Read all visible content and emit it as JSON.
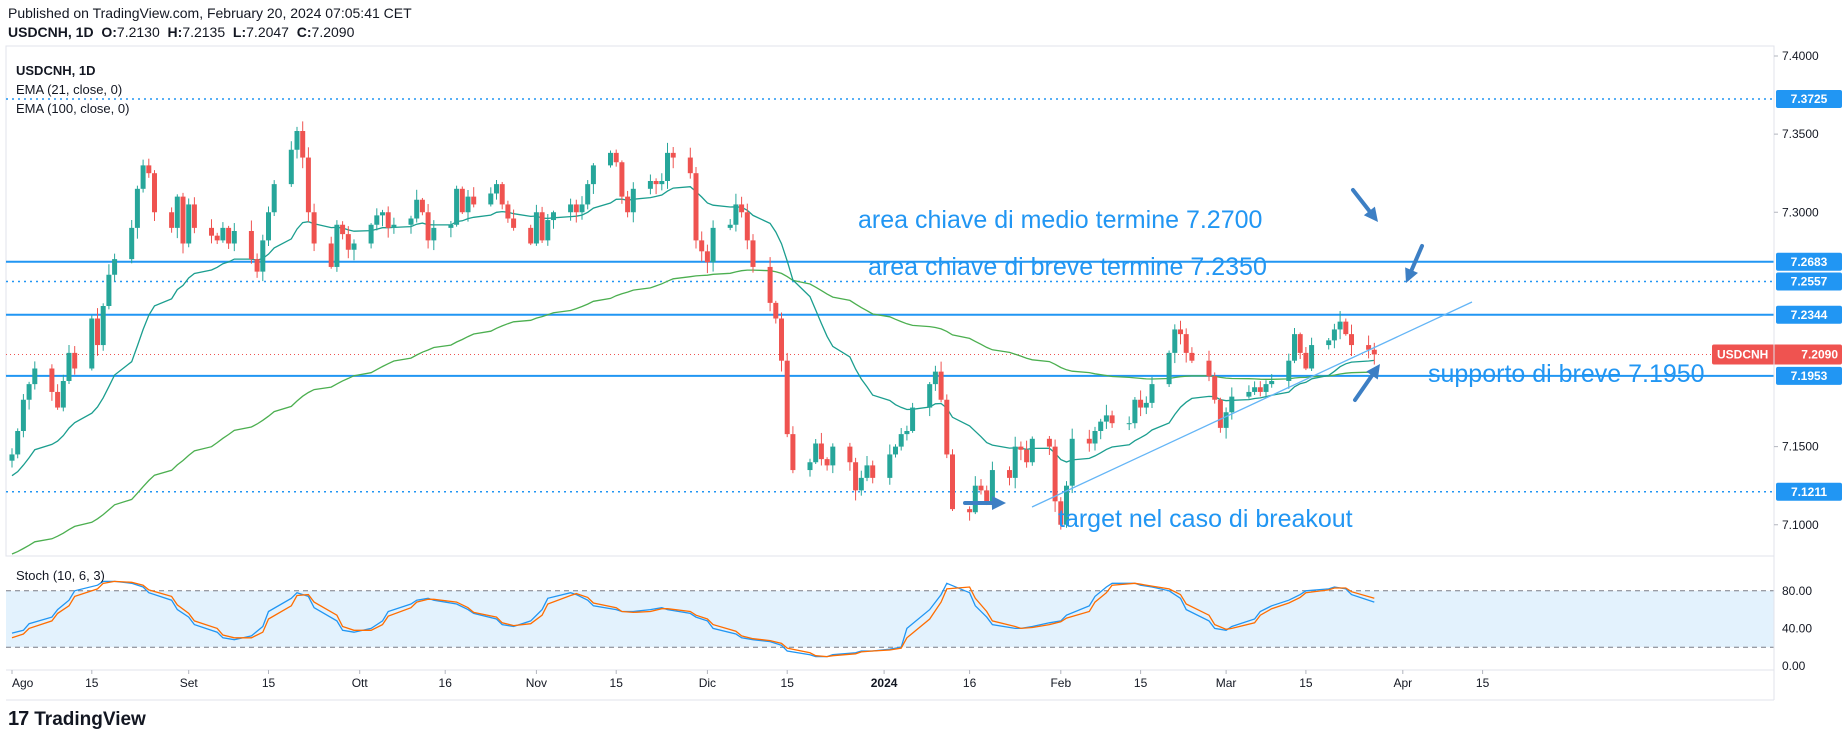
{
  "header": {
    "published": "Published on TradingView.com, February 20, 2024 07:05:41 CET",
    "symbol_line": "USDCNH, 1D",
    "o_label": "O:",
    "o_value": "7.2130",
    "h_label": "H:",
    "h_value": "7.2135",
    "l_label": "L:",
    "l_value": "7.2047",
    "c_label": "C:",
    "c_value": "7.2090"
  },
  "legend": {
    "symbol": "USDCNH, 1D",
    "ema21": "EMA (21, close, 0)",
    "ema100": "EMA (100, close, 0)",
    "stoch": "Stoch (10, 6, 3)"
  },
  "footer": {
    "brand": "TradingView",
    "logo_glyph": "17"
  },
  "colors": {
    "up": "#26a69a",
    "down": "#ef5350",
    "ema21": "#1b9e8f",
    "ema100": "#4caf50",
    "level": "#2196f3",
    "annotation": "#2196f3",
    "arrow": "#3d7fc4",
    "stoch_k": "#2196f3",
    "stoch_d": "#ff6d00",
    "stoch_band": "#e3f2fd"
  },
  "chart_data": [
    {
      "type": "candlestick",
      "symbol": "USDCNH",
      "timeframe": "1D",
      "ylim": [
        7.08,
        7.4
      ],
      "y_ticks": [
        "7.1000",
        "7.1500",
        "7.3000",
        "7.3500",
        "7.4000"
      ],
      "x_ticks": [
        "Ago",
        "15",
        "Set",
        "15",
        "Ott",
        "16",
        "Nov",
        "15",
        "Dic",
        "15",
        "2024",
        "16",
        "Feb",
        "15",
        "Mar",
        "15",
        "Apr",
        "15"
      ],
      "x_tick_days": [
        0,
        14,
        31,
        45,
        61,
        76,
        92,
        106,
        122,
        136,
        153,
        168,
        184,
        198,
        213,
        227,
        244,
        258
      ],
      "closes": [
        7.145,
        7.16,
        7.18,
        7.19,
        7.2,
        7.185,
        7.175,
        7.192,
        7.21,
        7.2,
        7.232,
        7.215,
        7.24,
        7.26,
        7.27,
        7.29,
        7.315,
        7.33,
        7.325,
        7.3,
        7.29,
        7.31,
        7.28,
        7.305,
        7.29,
        7.285,
        7.282,
        7.29,
        7.28,
        7.288,
        7.27,
        7.262,
        7.282,
        7.3,
        7.318,
        7.34,
        7.352,
        7.335,
        7.3,
        7.28,
        7.265,
        7.292,
        7.286,
        7.276,
        7.28,
        7.292,
        7.298,
        7.3,
        7.29,
        7.292,
        7.296,
        7.308,
        7.3,
        7.282,
        7.29,
        7.292,
        7.315,
        7.3,
        7.31,
        7.305,
        7.312,
        7.318,
        7.305,
        7.296,
        7.29,
        7.28,
        7.3,
        7.282,
        7.295,
        7.3,
        7.305,
        7.3,
        7.305,
        7.318,
        7.33,
        7.338,
        7.332,
        7.31,
        7.3,
        7.315,
        7.32,
        7.318,
        7.32,
        7.338,
        7.335,
        7.325,
        7.282,
        7.275,
        7.268,
        7.29,
        7.292,
        7.305,
        7.3,
        7.282,
        7.265,
        7.242,
        7.232,
        7.205,
        7.158,
        7.135,
        7.14,
        7.152,
        7.142,
        7.138,
        7.15,
        7.14,
        7.122,
        7.13,
        7.138,
        7.13,
        7.145,
        7.15,
        7.158,
        7.16,
        7.175,
        7.19,
        7.198,
        7.18,
        7.145,
        7.11,
        7.108,
        7.125,
        7.122,
        7.115,
        7.135,
        7.13,
        7.15,
        7.148,
        7.14,
        7.155,
        7.15,
        7.115,
        7.1,
        7.125,
        7.155,
        7.152,
        7.16,
        7.166,
        7.17,
        7.165,
        7.165,
        7.18,
        7.175,
        7.178,
        7.19,
        7.21,
        7.225,
        7.222,
        7.21,
        7.205,
        7.195,
        7.18,
        7.162,
        7.172,
        7.182,
        7.185,
        7.188,
        7.185,
        7.19,
        7.192,
        7.205,
        7.222,
        7.21,
        7.2,
        7.215,
        7.218,
        7.225,
        7.23,
        7.222,
        7.215,
        7.212,
        7.209
      ]
    },
    {
      "type": "line",
      "panel": "stochastic",
      "ylim": [
        0,
        100
      ],
      "y_ticks": [
        "0.00",
        "40.00",
        "80.00"
      ],
      "band": [
        20,
        80
      ],
      "series": [
        {
          "name": "%K",
          "values": [
            35,
            38,
            45,
            52,
            60,
            70,
            80,
            86,
            90,
            90,
            88,
            84,
            78,
            70,
            60,
            52,
            44,
            36,
            30,
            28,
            32,
            42,
            58,
            72,
            78,
            74,
            62,
            48,
            38,
            36,
            40,
            48,
            58,
            66,
            70,
            72,
            70,
            66,
            60,
            56,
            50,
            44,
            42,
            48,
            60,
            72,
            78,
            76,
            70,
            64,
            60,
            58,
            58,
            60,
            62,
            60,
            56,
            52,
            48,
            40,
            34,
            30,
            28,
            26,
            22,
            16,
            12,
            10,
            10,
            12,
            14,
            16,
            16,
            18,
            20,
            40,
            60,
            76,
            88,
            78,
            64,
            52,
            44,
            40,
            40,
            42,
            46,
            48,
            54,
            64,
            74,
            84,
            88,
            88,
            86,
            84,
            80,
            72,
            60,
            48,
            40,
            38,
            42,
            50,
            58,
            64,
            70,
            76,
            80,
            82,
            84,
            82,
            76,
            68
          ]
        },
        {
          "name": "%D",
          "values": [
            30,
            34,
            40,
            48,
            56,
            64,
            74,
            82,
            88,
            90,
            89,
            86,
            81,
            74,
            65,
            56,
            48,
            40,
            33,
            30,
            30,
            36,
            50,
            64,
            75,
            76,
            68,
            54,
            42,
            38,
            38,
            44,
            53,
            62,
            68,
            71,
            71,
            68,
            62,
            57,
            52,
            46,
            43,
            45,
            54,
            66,
            75,
            77,
            73,
            67,
            62,
            58,
            57,
            58,
            61,
            61,
            58,
            54,
            50,
            44,
            37,
            32,
            29,
            27,
            24,
            19,
            14,
            11,
            10,
            11,
            13,
            15,
            16,
            17,
            19,
            30,
            50,
            68,
            82,
            84,
            72,
            58,
            48,
            42,
            40,
            41,
            44,
            47,
            51,
            58,
            68,
            78,
            86,
            88,
            87,
            85,
            82,
            76,
            66,
            54,
            44,
            39,
            40,
            46,
            54,
            61,
            67,
            73,
            78,
            81,
            83,
            83,
            79,
            72
          ]
        }
      ]
    }
  ],
  "levels": [
    {
      "value": 7.3725,
      "label": "7.3725",
      "style": "dotted"
    },
    {
      "value": 7.2683,
      "label": "7.2683",
      "style": "solid"
    },
    {
      "value": 7.2557,
      "label": "7.2557",
      "style": "dotted"
    },
    {
      "value": 7.2344,
      "label": "7.2344",
      "style": "solid"
    },
    {
      "value": 7.1953,
      "label": "7.1953",
      "style": "solid"
    },
    {
      "value": 7.1211,
      "label": "7.1211",
      "style": "dotted"
    }
  ],
  "last_price": {
    "symbol": "USDCNH",
    "value": "7.2090",
    "raw": 7.209
  },
  "annotations": [
    "area chiave di medio termine 7.2700",
    "area chiave di breve termine 7.2350",
    "supporto di breve 7.1950",
    "target nel caso di breakout"
  ]
}
